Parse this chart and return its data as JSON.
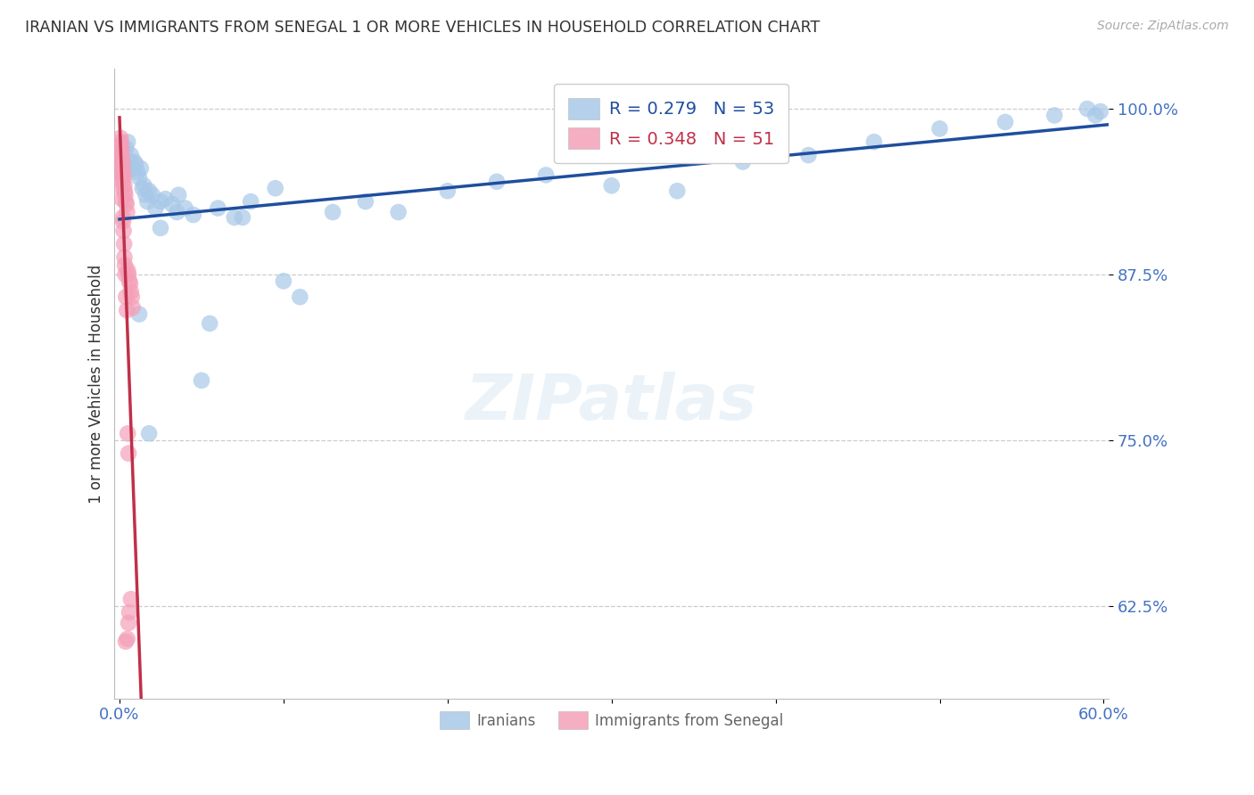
{
  "title": "IRANIAN VS IMMIGRANTS FROM SENEGAL 1 OR MORE VEHICLES IN HOUSEHOLD CORRELATION CHART",
  "source": "Source: ZipAtlas.com",
  "ylabel": "1 or more Vehicles in Household",
  "ytick_labels": [
    "100.0%",
    "87.5%",
    "75.0%",
    "62.5%"
  ],
  "ytick_values": [
    1.0,
    0.875,
    0.75,
    0.625
  ],
  "ymin": 0.555,
  "ymax": 1.03,
  "xmin": -0.003,
  "xmax": 0.603,
  "title_color": "#333333",
  "source_color": "#aaaaaa",
  "tick_label_color": "#4472c4",
  "grid_color": "#cccccc",
  "iranians_color": "#a8c8e8",
  "senegal_color": "#f4a0b8",
  "iranians_line_color": "#1f4e9e",
  "senegal_line_color": "#c0304a",
  "legend_R_iranians": "R = 0.279",
  "legend_N_iranians": "N = 53",
  "legend_R_senegal": "R = 0.348",
  "legend_N_senegal": "N = 51",
  "iranians_x": [
    0.004,
    0.005,
    0.006,
    0.007,
    0.008,
    0.009,
    0.01,
    0.011,
    0.012,
    0.013,
    0.014,
    0.015,
    0.016,
    0.017,
    0.018,
    0.02,
    0.022,
    0.025,
    0.028,
    0.032,
    0.036,
    0.04,
    0.045,
    0.05,
    0.06,
    0.07,
    0.08,
    0.095,
    0.11,
    0.13,
    0.15,
    0.17,
    0.2,
    0.23,
    0.26,
    0.3,
    0.34,
    0.38,
    0.42,
    0.46,
    0.5,
    0.54,
    0.57,
    0.59,
    0.595,
    0.598,
    0.025,
    0.018,
    0.012,
    0.035,
    0.055,
    0.075,
    0.1
  ],
  "iranians_y": [
    0.97,
    0.975,
    0.96,
    0.965,
    0.955,
    0.96,
    0.958,
    0.952,
    0.948,
    0.955,
    0.94,
    0.942,
    0.935,
    0.93,
    0.938,
    0.935,
    0.925,
    0.93,
    0.932,
    0.928,
    0.935,
    0.925,
    0.92,
    0.795,
    0.925,
    0.918,
    0.93,
    0.94,
    0.858,
    0.922,
    0.93,
    0.922,
    0.938,
    0.945,
    0.95,
    0.942,
    0.938,
    0.96,
    0.965,
    0.975,
    0.985,
    0.99,
    0.995,
    1.0,
    0.995,
    0.998,
    0.91,
    0.755,
    0.845,
    0.922,
    0.838,
    0.918,
    0.87
  ],
  "senegal_x": [
    0.0005,
    0.0007,
    0.0009,
    0.0011,
    0.0013,
    0.0015,
    0.0017,
    0.0019,
    0.0021,
    0.0023,
    0.0026,
    0.0029,
    0.0032,
    0.0035,
    0.0038,
    0.0042,
    0.0046,
    0.005,
    0.0055,
    0.006,
    0.0065,
    0.007,
    0.0075,
    0.008,
    0.001,
    0.0008,
    0.0006,
    0.0015,
    0.002,
    0.0025,
    0.003,
    0.0035,
    0.0022,
    0.0018,
    0.0012,
    0.004,
    0.0045,
    0.0028,
    0.0016,
    0.005,
    0.0055,
    0.0033,
    0.0004,
    0.0006,
    0.0008,
    0.001,
    0.006,
    0.0055,
    0.0048,
    0.0038,
    0.007
  ],
  "senegal_y": [
    0.97,
    0.965,
    0.96,
    0.958,
    0.955,
    0.95,
    0.962,
    0.958,
    0.945,
    0.952,
    0.948,
    0.942,
    0.938,
    0.935,
    0.93,
    0.928,
    0.922,
    0.878,
    0.875,
    0.87,
    0.868,
    0.862,
    0.858,
    0.85,
    0.965,
    0.975,
    0.978,
    0.932,
    0.918,
    0.908,
    0.888,
    0.875,
    0.915,
    0.94,
    0.968,
    0.858,
    0.848,
    0.898,
    0.948,
    0.755,
    0.74,
    0.882,
    0.972,
    0.968,
    0.972,
    0.968,
    0.62,
    0.612,
    0.6,
    0.598,
    0.63
  ]
}
